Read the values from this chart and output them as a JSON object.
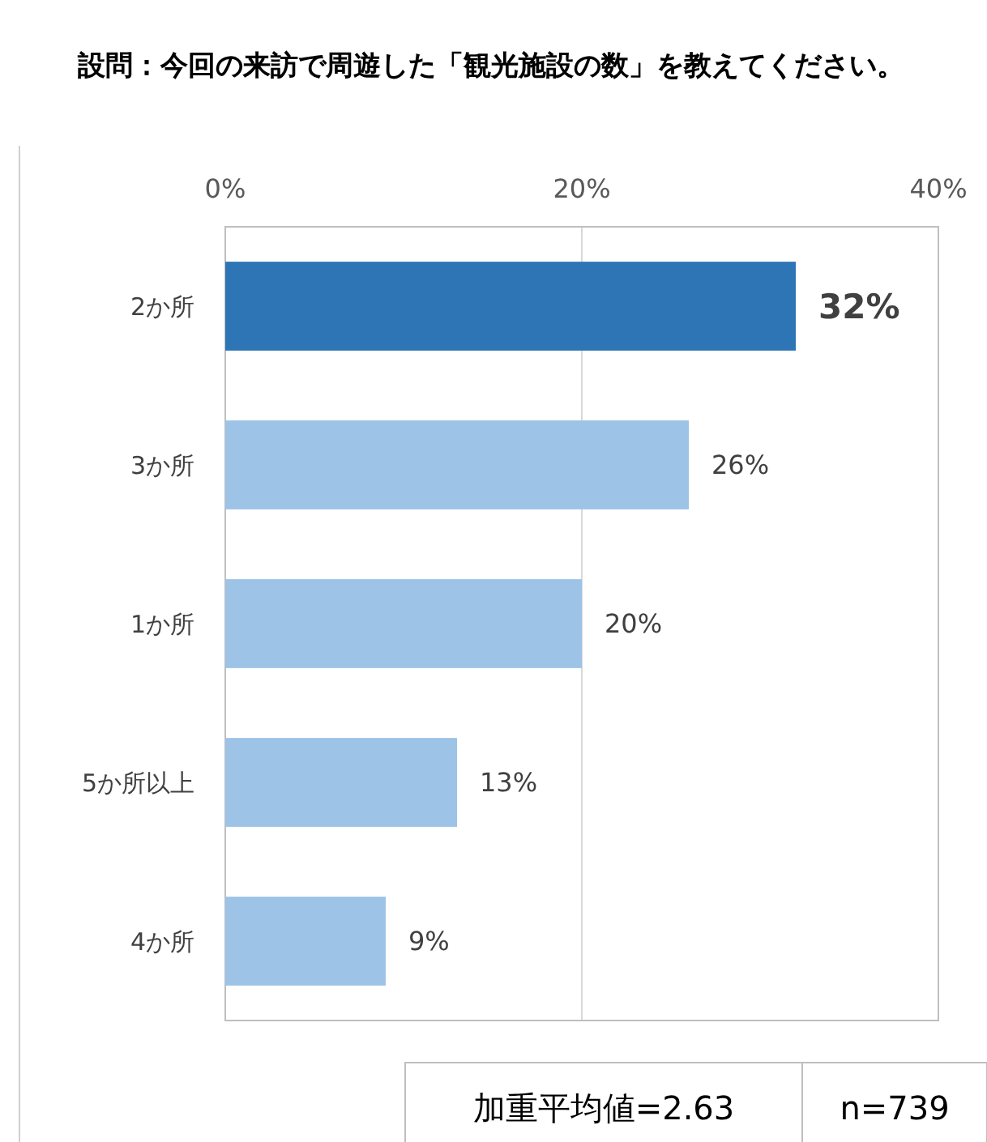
{
  "chart_data": {
    "type": "bar",
    "orientation": "horizontal",
    "title": "設問：今回の来訪で周遊した「観光施設の数」を教えてください。",
    "categories": [
      "2か所",
      "3か所",
      "1か所",
      "5か所以上",
      "4か所"
    ],
    "values": [
      32,
      26,
      20,
      13,
      9
    ],
    "colors": [
      "#2e75b6",
      "#9dc3e6",
      "#9dc3e6",
      "#9dc3e6",
      "#9dc3e6"
    ],
    "xlim": [
      0,
      40
    ],
    "xticks": [
      {
        "value": 0,
        "label": "0%"
      },
      {
        "value": 20,
        "label": "20%"
      },
      {
        "value": 40,
        "label": "40%"
      }
    ],
    "grid": "x",
    "data_labels": true,
    "value_labels": [
      "32%",
      "26%",
      "20%",
      "13%",
      "9%"
    ],
    "annotations": [
      "加重平均値=2.63",
      "n=739"
    ]
  }
}
